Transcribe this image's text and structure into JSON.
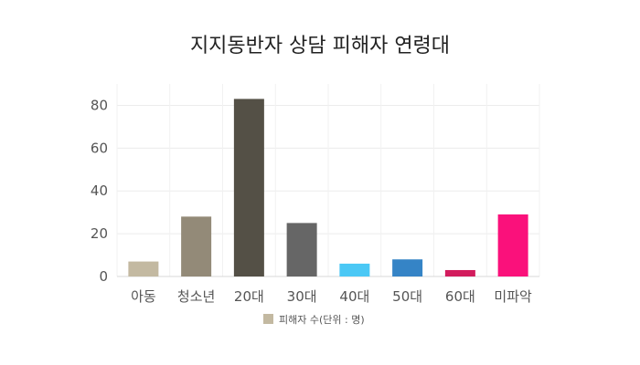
{
  "chart_data": {
    "type": "bar",
    "title": "지지동반자 상담 피해자 연령대",
    "categories": [
      "아동",
      "청소년",
      "20대",
      "30대",
      "40대",
      "50대",
      "60대",
      "미파악"
    ],
    "series": [
      {
        "name": "피해자 수(단위 : 명)",
        "values": [
          7,
          28,
          83,
          25,
          6,
          8,
          3,
          29
        ]
      }
    ],
    "bar_colors": [
      "#c3b9a1",
      "#938a78",
      "#545046",
      "#666666",
      "#4bc8f5",
      "#3584c6",
      "#d21c5d",
      "#fa117b"
    ],
    "legend_color": "#c3b9a1",
    "ylim": [
      0,
      90
    ],
    "yticks": [
      0,
      20,
      40,
      60,
      80
    ],
    "grid": true,
    "legend_position": "bottom-center"
  }
}
